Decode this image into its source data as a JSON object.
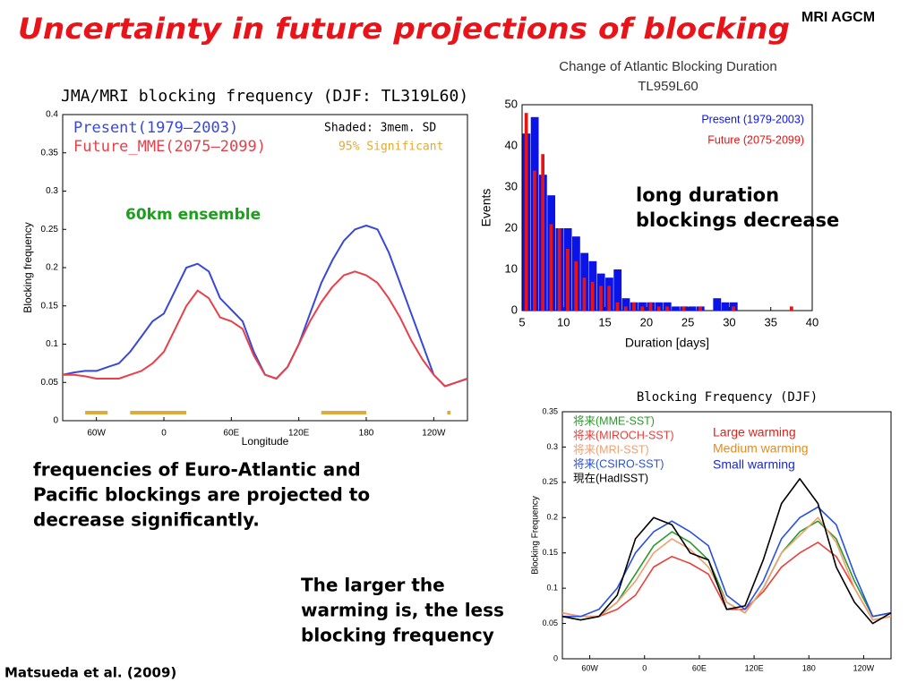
{
  "header": {
    "title": "Uncertainty in future projections of blocking",
    "tag": "MRI AGCM"
  },
  "notes": {
    "euro_atlantic": [
      "frequencies of Euro-Atlantic and",
      "Pacific blockings are projected to",
      "decrease significantly."
    ],
    "warming": [
      "The larger the",
      "warming is, the less",
      "blocking frequency"
    ],
    "duration": [
      "long duration",
      "blockings decrease"
    ]
  },
  "citation": "Matsueda et al. (2009)",
  "chart_data": [
    {
      "type": "line",
      "title": "JMA/MRI blocking frequency (DJF: TL319L60)",
      "x_label": "Longitude",
      "y_label": "Blocking frequency",
      "x": [
        -90,
        -80,
        -70,
        -60,
        -50,
        -40,
        -30,
        -20,
        -10,
        0,
        10,
        20,
        30,
        40,
        50,
        60,
        70,
        80,
        90,
        100,
        110,
        120,
        130,
        140,
        150,
        160,
        170,
        180,
        190,
        200,
        210,
        220,
        230,
        240,
        250,
        260,
        270
      ],
      "series": [
        {
          "name": "Present(1979–2003)",
          "color": "#3a48d8",
          "values": [
            0.06,
            0.063,
            0.065,
            0.065,
            0.07,
            0.075,
            0.09,
            0.11,
            0.13,
            0.14,
            0.17,
            0.2,
            0.205,
            0.195,
            0.16,
            0.145,
            0.13,
            0.09,
            0.06,
            0.055,
            0.07,
            0.1,
            0.14,
            0.18,
            0.21,
            0.235,
            0.25,
            0.255,
            0.25,
            0.22,
            0.18,
            0.14,
            0.1,
            0.06,
            0.045,
            0.05,
            0.055
          ]
        },
        {
          "name": "Future_MME(2075–2099)",
          "color": "#e8404a",
          "values": [
            0.06,
            0.06,
            0.058,
            0.055,
            0.055,
            0.055,
            0.06,
            0.065,
            0.075,
            0.09,
            0.12,
            0.15,
            0.17,
            0.16,
            0.135,
            0.13,
            0.12,
            0.085,
            0.06,
            0.055,
            0.07,
            0.1,
            0.13,
            0.155,
            0.175,
            0.19,
            0.195,
            0.19,
            0.18,
            0.16,
            0.135,
            0.105,
            0.08,
            0.06,
            0.045,
            0.05,
            0.055
          ]
        }
      ],
      "significant": {
        "color": "#e0aa3a",
        "ranges": [
          [
            -70,
            -50
          ],
          [
            -30,
            20
          ],
          [
            140,
            180
          ],
          [
            252,
            255
          ]
        ]
      },
      "annotations": [
        {
          "text": "Shaded: 3mem. SD",
          "color": "#000000"
        },
        {
          "text": "95% Significant",
          "color": "#e0aa3a"
        },
        {
          "text": "60km ensemble",
          "color": "#1aa01a"
        }
      ],
      "xlim": [
        -90,
        270
      ],
      "xticks": [
        {
          "value": -60,
          "label": "60W"
        },
        0,
        {
          "value": 60,
          "label": "60E"
        },
        {
          "value": 120,
          "label": "120E"
        },
        180,
        {
          "value": 240,
          "label": "120W"
        }
      ],
      "ylim": [
        0,
        0.4
      ],
      "yticks": [
        0,
        0.05,
        0.1,
        0.15,
        0.2,
        0.25,
        0.3,
        0.35,
        0.4
      ]
    },
    {
      "type": "bar",
      "title": "Change of Atlantic Blocking Duration",
      "subtitle": "TL959L60",
      "x_label": "Duration [days]",
      "y_label": "Events",
      "x": [
        5,
        6,
        7,
        8,
        9,
        10,
        11,
        12,
        13,
        14,
        15,
        16,
        17,
        18,
        19,
        20,
        21,
        22,
        23,
        24,
        25,
        26,
        27,
        28,
        29,
        30,
        31,
        32,
        33,
        34,
        35,
        36,
        37
      ],
      "series": [
        {
          "name": "Present (1979-2003)",
          "color": "#0a14e6",
          "values": [
            43,
            47,
            33,
            28,
            20,
            20,
            18,
            14,
            12,
            9,
            8,
            10,
            3,
            2,
            2,
            2,
            2,
            2,
            1,
            1,
            1,
            1,
            0,
            3,
            2,
            2,
            0,
            0,
            0,
            0,
            0,
            0,
            0
          ]
        },
        {
          "name": "Future (2075-2099)",
          "color": "#e61414",
          "values": [
            48,
            34,
            38,
            21,
            20,
            15,
            12,
            8,
            7,
            6,
            6,
            2,
            1,
            2,
            1,
            2,
            1,
            1,
            0,
            1,
            0,
            1,
            0,
            0,
            0,
            1,
            0,
            0,
            0,
            0,
            0,
            0,
            1
          ]
        }
      ],
      "xlim": [
        5,
        40
      ],
      "xticks": [
        5,
        10,
        15,
        20,
        25,
        30,
        35,
        40
      ],
      "ylim": [
        0,
        50
      ],
      "yticks": [
        0,
        10,
        20,
        30,
        40,
        50
      ]
    },
    {
      "type": "line",
      "title": "Blocking Frequency (DJF)",
      "y_label": "Blocking Frequency",
      "x": [
        -90,
        -70,
        -50,
        -30,
        -10,
        10,
        30,
        50,
        70,
        90,
        110,
        130,
        150,
        170,
        190,
        210,
        230,
        250,
        270
      ],
      "series": [
        {
          "name": "将来(MME-SST)",
          "color": "#2a9a2a",
          "values": [
            0.06,
            0.055,
            0.06,
            0.08,
            0.12,
            0.16,
            0.18,
            0.165,
            0.14,
            0.08,
            0.065,
            0.1,
            0.15,
            0.18,
            0.195,
            0.17,
            0.11,
            0.06,
            0.065
          ]
        },
        {
          "name": "将来(MIROCH-SST)",
          "color": "#e8403a",
          "values": [
            0.065,
            0.06,
            0.06,
            0.07,
            0.09,
            0.13,
            0.145,
            0.135,
            0.12,
            0.07,
            0.07,
            0.095,
            0.13,
            0.15,
            0.165,
            0.145,
            0.1,
            0.055,
            0.06
          ]
        },
        {
          "name": "将来(MRI-SST)",
          "color": "#f0a070",
          "values": [
            0.065,
            0.06,
            0.06,
            0.08,
            0.11,
            0.15,
            0.17,
            0.155,
            0.13,
            0.08,
            0.065,
            0.1,
            0.15,
            0.175,
            0.2,
            0.165,
            0.1,
            0.055,
            0.06
          ]
        },
        {
          "name": "将来(CSIRO-SST)",
          "color": "#2a50e0",
          "values": [
            0.06,
            0.06,
            0.07,
            0.1,
            0.15,
            0.18,
            0.195,
            0.18,
            0.16,
            0.09,
            0.07,
            0.11,
            0.17,
            0.2,
            0.215,
            0.19,
            0.12,
            0.06,
            0.065
          ]
        },
        {
          "name": "現在(HadISST)",
          "color": "#000000",
          "values": [
            0.06,
            0.055,
            0.06,
            0.09,
            0.17,
            0.2,
            0.19,
            0.15,
            0.14,
            0.07,
            0.075,
            0.14,
            0.22,
            0.255,
            0.22,
            0.13,
            0.08,
            0.05,
            0.065
          ]
        }
      ],
      "annotations": [
        {
          "text": "Large warming",
          "color": "#e0201a"
        },
        {
          "text": "Medium warming",
          "color": "#e88a1a"
        },
        {
          "text": "Small warming",
          "color": "#1a28d0"
        }
      ],
      "xlim": [
        -90,
        270
      ],
      "xticks": [
        {
          "value": -60,
          "label": "60W"
        },
        0,
        {
          "value": 60,
          "label": "60E"
        },
        {
          "value": 120,
          "label": "120E"
        },
        180,
        {
          "value": 240,
          "label": "120W"
        }
      ],
      "ylim": [
        0,
        0.35
      ],
      "yticks": [
        0,
        0.05,
        0.1,
        0.15,
        0.2,
        0.25,
        0.3,
        0.35
      ]
    }
  ]
}
